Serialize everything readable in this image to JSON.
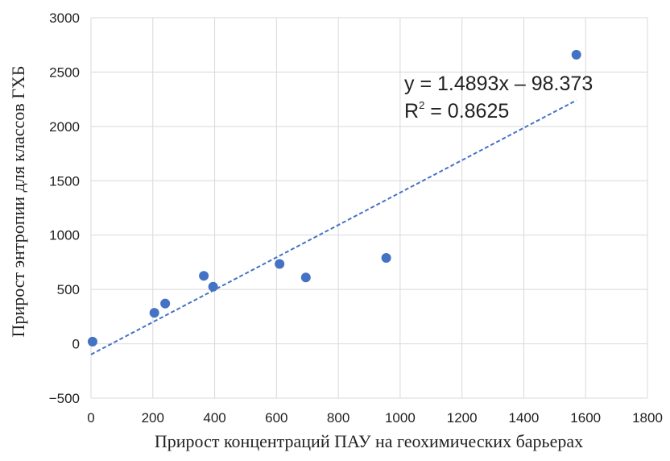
{
  "chart_data": {
    "type": "scatter",
    "xlabel": "Прирост концентраций ПАУ на геохимических барьерах",
    "ylabel": "Прирост энтропии для классов ГХБ",
    "xlim": [
      0,
      1800
    ],
    "ylim": [
      -500,
      3000
    ],
    "x_ticks": [
      "0",
      "200",
      "400",
      "600",
      "800",
      "1000",
      "1200",
      "1400",
      "1600",
      "1800"
    ],
    "y_ticks": [
      "−500",
      "0",
      "500",
      "1000",
      "1500",
      "2000",
      "2500",
      "3000"
    ],
    "grid": true,
    "series": [
      {
        "points": [
          {
            "x": 5,
            "y": 20
          },
          {
            "x": 205,
            "y": 285
          },
          {
            "x": 240,
            "y": 370
          },
          {
            "x": 365,
            "y": 625
          },
          {
            "x": 395,
            "y": 525
          },
          {
            "x": 610,
            "y": 735
          },
          {
            "x": 695,
            "y": 610
          },
          {
            "x": 955,
            "y": 790
          },
          {
            "x": 1570,
            "y": 2660
          }
        ],
        "color": "#4472c4"
      }
    ],
    "trendline": {
      "slope": 1.4893,
      "intercept": -98.373,
      "x_range": [
        0,
        1570
      ],
      "color": "#4472c4",
      "style": "dashed"
    },
    "annotations": {
      "equation": "y = 1.4893x – 98.373",
      "r2_prefix": "R",
      "r2_sup": "2",
      "r2_value": " = 0.8625"
    }
  }
}
